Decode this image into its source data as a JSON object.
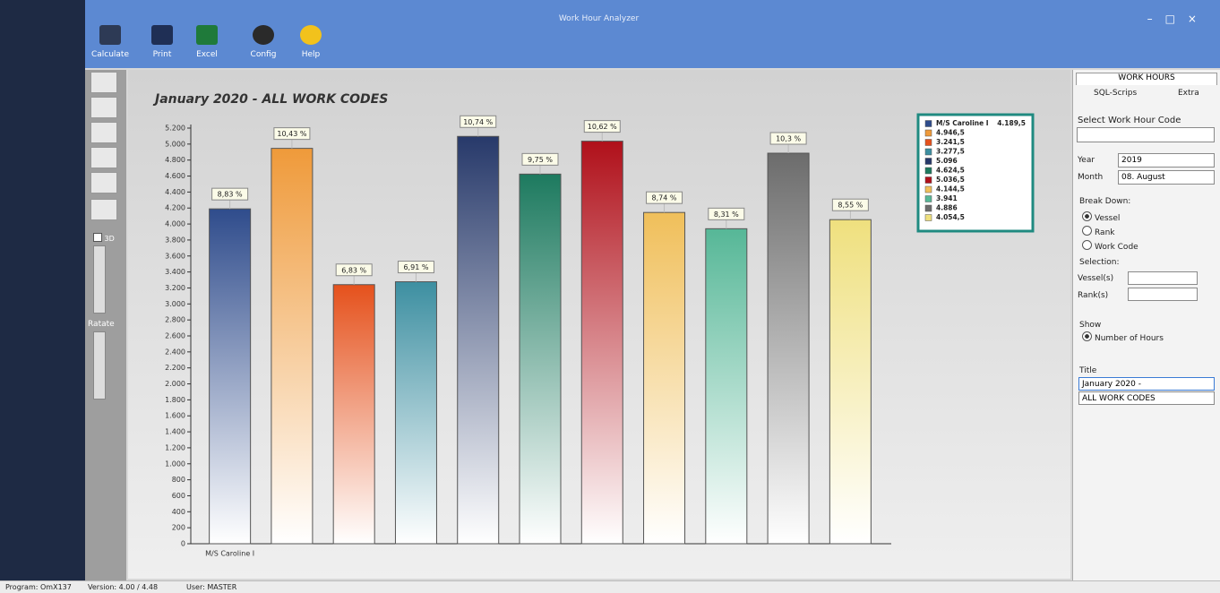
{
  "window": {
    "title": "Work Hour Analyzer"
  },
  "toolbar": [
    "Calculate",
    "Print",
    "Excel",
    "Config",
    "Help"
  ],
  "left_tools": {
    "three_d": "3D",
    "rotate": "Ratate"
  },
  "chart_data": {
    "type": "bar",
    "title": "January 2020 - ALL WORK CODES",
    "categories": [
      "M/S Caroline I",
      null,
      null,
      null,
      null,
      null,
      null,
      null,
      null,
      null,
      null
    ],
    "values": [
      4189.5,
      4946.5,
      3241.5,
      3277.5,
      5096,
      4624.5,
      5036.5,
      4144.5,
      3941,
      4886,
      4054.5
    ],
    "value_labels": [
      "4.189,5",
      "4.946,5",
      "3.241,5",
      "3.277,5",
      "5.096",
      "4.624,5",
      "5.036,5",
      "4.144,5",
      "3.941",
      "4.886",
      "4.054,5"
    ],
    "share": {
      "values": [
        8.83,
        10.43,
        6.83,
        6.91,
        10.74,
        9.75,
        10.62,
        8.74,
        8.31,
        10.3,
        8.55
      ],
      "value_labels": [
        "8,83 %",
        "10,43 %",
        "6,83 %",
        "6,91 %",
        "10,74 %",
        "9,75 %",
        "10,62 %",
        "8,74 %",
        "8,31 %",
        "10,3 %",
        "8,55 %"
      ]
    },
    "colors": [
      "#2f4c8c",
      "#ef9a3a",
      "#e5511c",
      "#3d8fa1",
      "#27396a",
      "#1d7a5f",
      "#b0101a",
      "#f0bf5a",
      "#56b797",
      "#6c6c6c",
      "#efe07e"
    ],
    "ylim": [
      0,
      5200
    ],
    "yticks": [
      0,
      200,
      400,
      600,
      800,
      {
        "value": 1000,
        "label": "1.000"
      },
      {
        "value": 1200,
        "label": "1.200"
      },
      {
        "value": 1400,
        "label": "1.400"
      },
      {
        "value": 1600,
        "label": "1.600"
      },
      {
        "value": 1800,
        "label": "1.800"
      },
      {
        "value": 2000,
        "label": "2.000"
      },
      {
        "value": 2200,
        "label": "2.200"
      },
      {
        "value": 2400,
        "label": "2.400"
      },
      {
        "value": 2600,
        "label": "2.600"
      },
      {
        "value": 2800,
        "label": "2.800"
      },
      {
        "value": 3000,
        "label": "3.000"
      },
      {
        "value": 3200,
        "label": "3.200"
      },
      {
        "value": 3400,
        "label": "3.400"
      },
      {
        "value": 3600,
        "label": "3.600"
      },
      {
        "value": 3800,
        "label": "3.800"
      },
      {
        "value": 4000,
        "label": "4.000"
      },
      {
        "value": 4200,
        "label": "4.200"
      },
      {
        "value": 4400,
        "label": "4.400"
      },
      {
        "value": 4600,
        "label": "4.600"
      },
      {
        "value": 4800,
        "label": "4.800"
      },
      {
        "value": 5000,
        "label": "5.000"
      },
      {
        "value": 5200,
        "label": "5.200"
      }
    ],
    "legend": "top-right"
  },
  "panel": {
    "header": "WORK HOURS",
    "tabs": [
      "SQL-Scrips",
      "Extra"
    ],
    "select_code": "Select Work Hour Code",
    "year_label": "Year",
    "year": "2019",
    "month_label": "Month",
    "month": "08. August",
    "breakdown": "Break Down:",
    "breakdown_options": [
      "Vessel",
      "Rank",
      "Work Code"
    ],
    "selection": "Selection:",
    "vessels": "Vessel(s)",
    "ranks": "Rank(s)",
    "show": "Show",
    "show_option": "Number of Hours",
    "title_label": "Title",
    "title_lines": [
      "January 2020 -",
      "ALL WORK CODES"
    ]
  },
  "status": [
    "Program: OmX137",
    "Version: 4.00 / 4.48",
    "User: MASTER"
  ]
}
